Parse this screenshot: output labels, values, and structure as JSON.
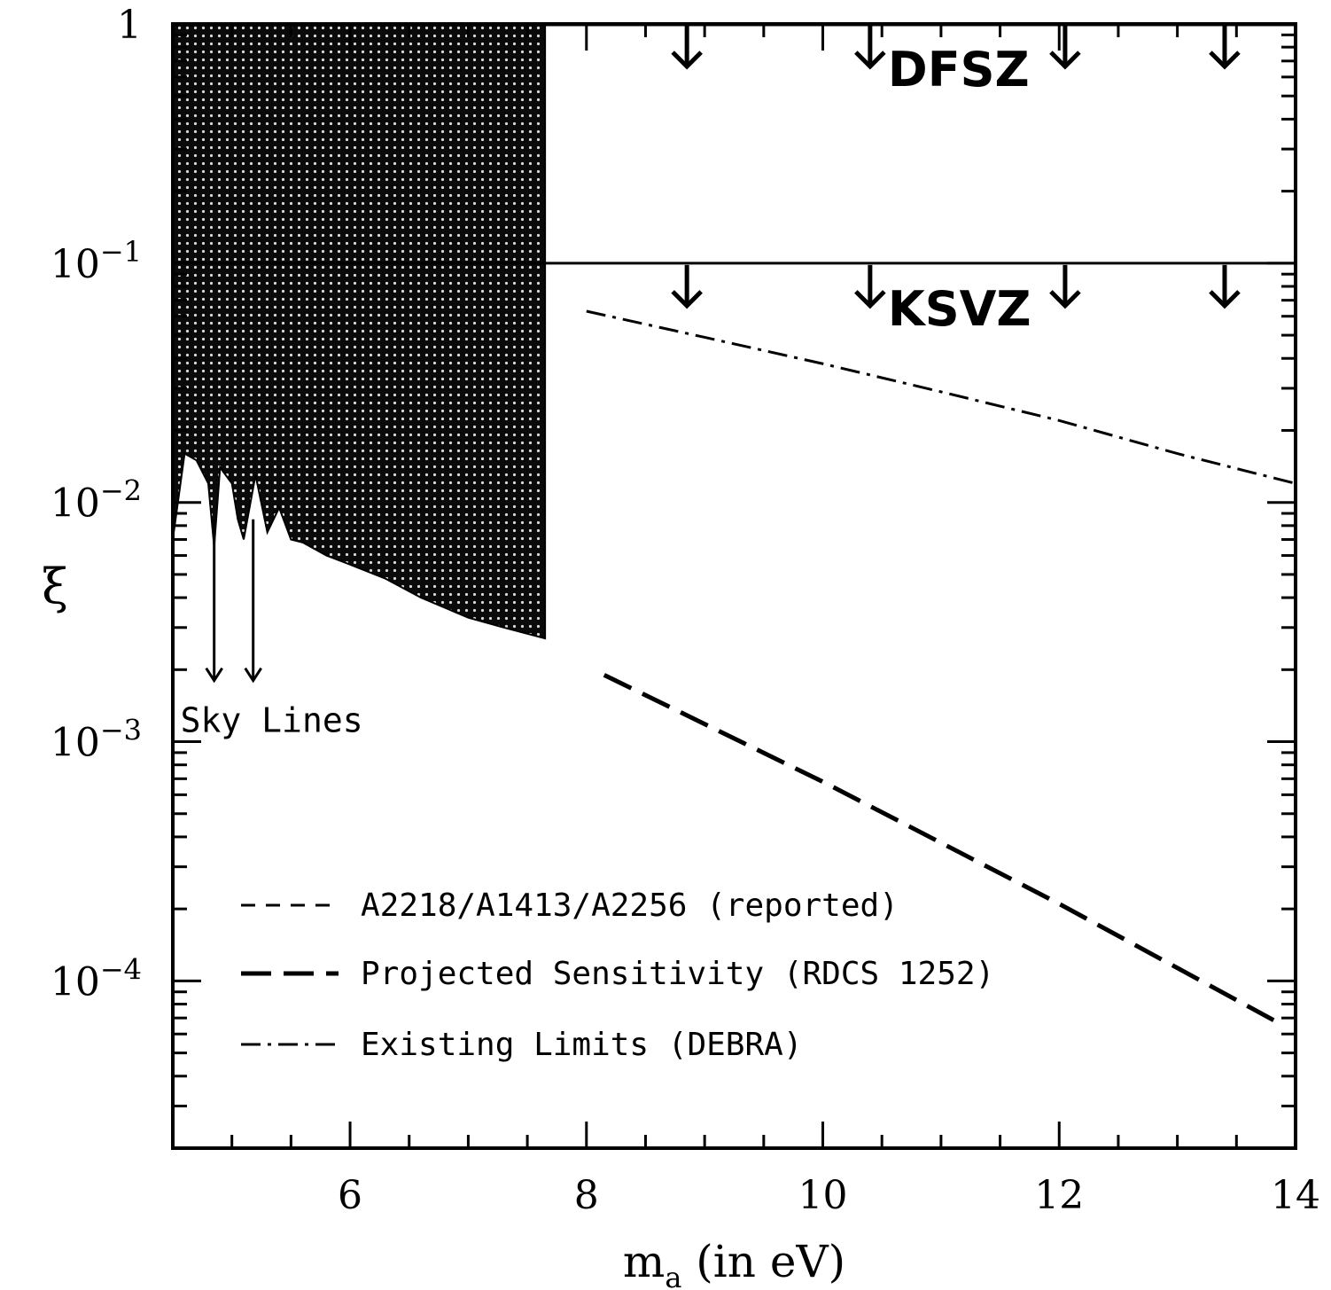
{
  "chart_data": {
    "type": "line",
    "x_axis": {
      "label_main": "m",
      "label_sub": "a",
      "label_rest": " (in eV)",
      "range": [
        4.5,
        14
      ],
      "ticks": [
        6,
        8,
        10,
        12,
        14
      ],
      "tick_labels": [
        "6",
        "8",
        "10",
        "12",
        "14"
      ]
    },
    "y_axis": {
      "label": "ξ",
      "scale": "log",
      "range": [
        2e-05,
        1
      ],
      "ticks": [
        1,
        0.1,
        0.01,
        0.001,
        0.0001
      ],
      "tick_labels": [
        {
          "base": "1",
          "exp": ""
        },
        {
          "base": "10",
          "exp": "−1"
        },
        {
          "base": "10",
          "exp": "−2"
        },
        {
          "base": "10",
          "exp": "−3"
        },
        {
          "base": "10",
          "exp": "−4"
        }
      ]
    },
    "horizontal_lines": [
      {
        "label": "DFSZ",
        "y": 1
      },
      {
        "label": "KSVZ",
        "y": 0.1
      }
    ],
    "limit_arrow_x": [
      8.85,
      10.4,
      12.05,
      13.4
    ],
    "shaded_region": {
      "series": "A2218/A1413/A2256 (reported)",
      "x": [
        4.5,
        4.6,
        4.7,
        4.8,
        4.85,
        4.9,
        5.0,
        5.05,
        5.1,
        5.2,
        5.3,
        5.4,
        5.5,
        5.6,
        5.8,
        6.0,
        6.3,
        6.6,
        7.0,
        7.3,
        7.65
      ],
      "y": [
        0.007,
        0.016,
        0.015,
        0.012,
        0.0065,
        0.014,
        0.012,
        0.0085,
        0.007,
        0.013,
        0.0075,
        0.0095,
        0.007,
        0.0068,
        0.006,
        0.0055,
        0.0048,
        0.004,
        0.0033,
        0.003,
        0.0027
      ],
      "upper": 1
    },
    "sky_lines": {
      "label": "Sky Lines",
      "x": [
        4.85,
        5.18
      ],
      "y_top": 0.0085,
      "y_bottom": 0.0018
    },
    "series": [
      {
        "name": "A2218/A1413/A2256 (reported)",
        "style": "dashed",
        "x": [
          4.5,
          7.65
        ],
        "y": [
          0.007,
          0.0027
        ]
      },
      {
        "name": "Projected Sensitivity (RDCS 1252)",
        "style": "long-dashed",
        "x": [
          8.15,
          10.0,
          12.0,
          13.9
        ],
        "y": [
          0.0019,
          0.00068,
          0.00021,
          6.5e-05
        ]
      },
      {
        "name": "Existing Limits (DEBRA)",
        "style": "dash-dot",
        "x": [
          8.0,
          9.0,
          10.0,
          11.0,
          12.0,
          13.0,
          14.0
        ],
        "y": [
          0.063,
          0.049,
          0.038,
          0.029,
          0.022,
          0.016,
          0.012
        ]
      }
    ],
    "legend": {
      "position": "bottom-left",
      "entries": [
        {
          "label": "A2218/A1413/A2256 (reported)",
          "style": "dashed"
        },
        {
          "label": "Projected Sensitivity (RDCS 1252)",
          "style": "long-dashed"
        },
        {
          "label": "Existing Limits (DEBRA)",
          "style": "dash-dot"
        }
      ]
    },
    "grid": false
  }
}
